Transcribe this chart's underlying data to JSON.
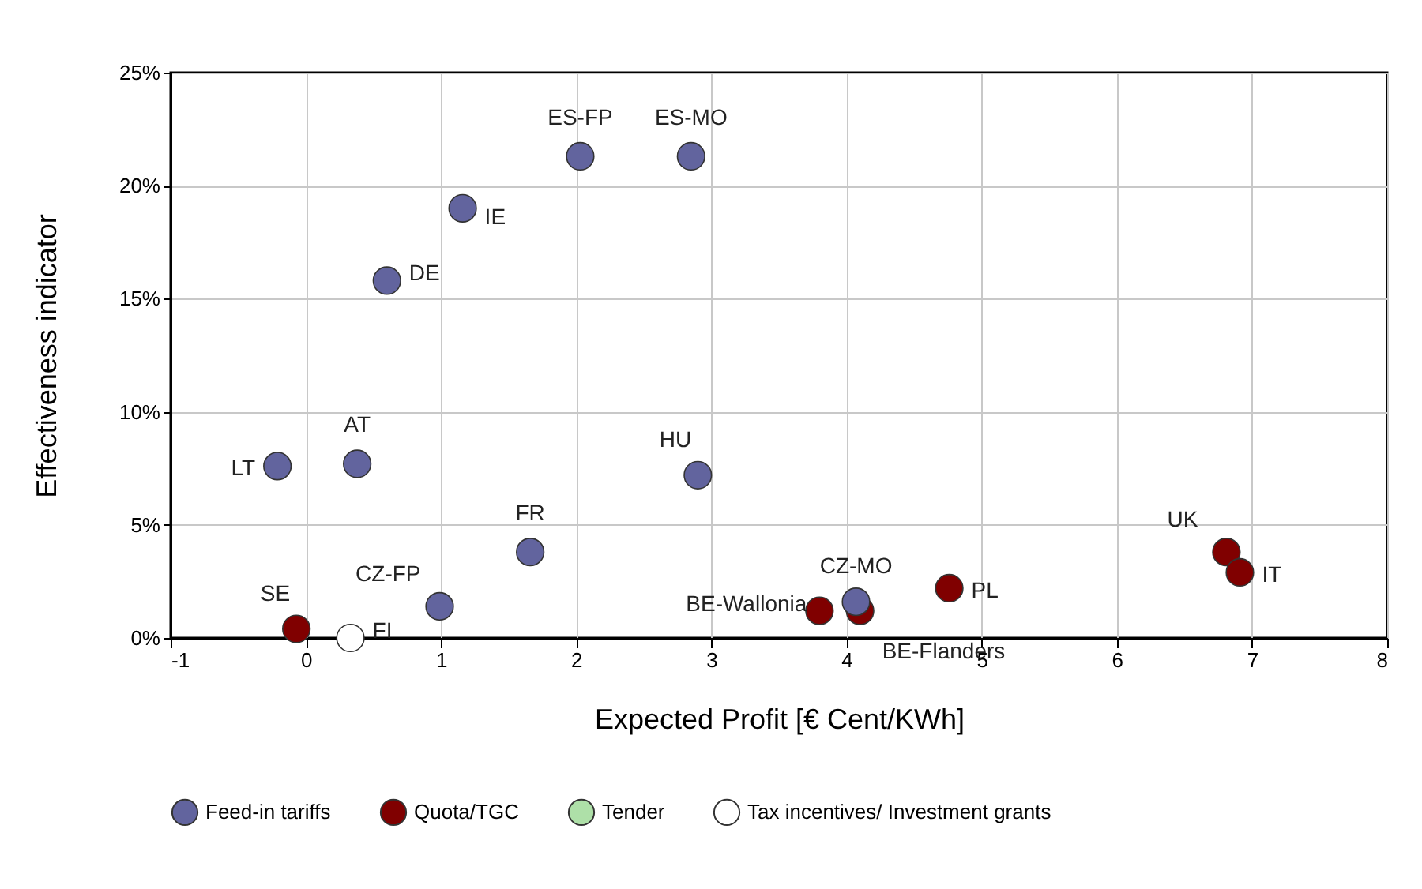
{
  "chart_data": {
    "type": "scatter",
    "xlabel": "Expected Profit [€ Cent/KWh]",
    "ylabel": "Effectiveness indicator",
    "xlim": [
      -1,
      8
    ],
    "xticks": [
      -1,
      0,
      1,
      2,
      3,
      4,
      5,
      6,
      7,
      8
    ],
    "ylim": [
      0,
      25
    ],
    "yticks": [
      {
        "value": 0,
        "label": "0%"
      },
      {
        "value": 5,
        "label": "5%"
      },
      {
        "value": 10,
        "label": "10%"
      },
      {
        "value": 15,
        "label": "15%"
      },
      {
        "value": 20,
        "label": "20%"
      },
      {
        "value": 25,
        "label": "25%"
      }
    ],
    "grid": true,
    "legend": "bottom",
    "marker": "circle",
    "series": [
      {
        "name": "Feed-in tariffs",
        "color": "#62649e",
        "x": [
          2.03,
          2.85,
          1.16,
          0.6,
          0.38,
          -0.21,
          2.9,
          1.66,
          0.99,
          4.07
        ],
        "values": [
          21.3,
          21.3,
          19.0,
          15.8,
          7.7,
          7.6,
          7.2,
          3.8,
          1.4,
          1.6
        ]
      },
      {
        "name": "Quota/TGC",
        "color": "#800000",
        "x": [
          -0.07,
          3.8,
          4.1,
          4.76,
          6.81,
          6.91
        ],
        "values": [
          0.4,
          1.2,
          1.2,
          2.2,
          3.8,
          2.9
        ]
      },
      {
        "name": "Tender",
        "color": "#aee0a8"
      },
      {
        "name": "Tax incentives/ Investment grants",
        "color": "#ffffff",
        "x": [
          0.33
        ],
        "values": [
          0
        ]
      }
    ],
    "annotations": [
      {
        "text": "ES-FP",
        "x": 2.03,
        "y": 21.3
      },
      {
        "text": "ES-MO",
        "x": 2.85,
        "y": 21.3
      },
      {
        "text": "IE",
        "x": 1.16,
        "y": 19.0
      },
      {
        "text": "DE",
        "x": 0.6,
        "y": 15.8
      },
      {
        "text": "AT",
        "x": 0.38,
        "y": 7.7
      },
      {
        "text": "LT",
        "x": -0.21,
        "y": 7.6
      },
      {
        "text": "HU",
        "x": 2.9,
        "y": 7.2
      },
      {
        "text": "FR",
        "x": 1.66,
        "y": 3.8
      },
      {
        "text": "CZ-FP",
        "x": 0.99,
        "y": 1.4
      },
      {
        "text": "CZ-MO",
        "x": 4.07,
        "y": 1.6
      },
      {
        "text": "SE",
        "x": -0.07,
        "y": 0.4
      },
      {
        "text": "BE-Wallonia",
        "x": 3.8,
        "y": 1.2
      },
      {
        "text": "BE-Flanders",
        "x": 4.1,
        "y": 1.2
      },
      {
        "text": "PL",
        "x": 4.76,
        "y": 2.2
      },
      {
        "text": "UK",
        "x": 6.81,
        "y": 3.8
      },
      {
        "text": "IT",
        "x": 6.91,
        "y": 2.9
      },
      {
        "text": "FI",
        "x": 0.33,
        "y": 0
      }
    ]
  }
}
